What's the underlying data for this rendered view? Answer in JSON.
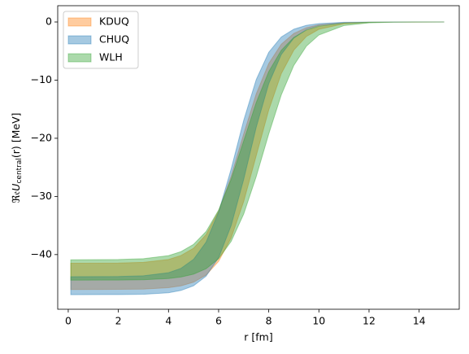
{
  "chart_data": {
    "type": "band",
    "x_label": "r [fm]",
    "y_label": {
      "prefix": "ℜ𝔢",
      "symbol": "U",
      "subscript": "central",
      "suffix": "(r) [MeV]"
    },
    "x": [
      0.1,
      2,
      3,
      4,
      4.5,
      5,
      5.5,
      6,
      6.5,
      7,
      7.5,
      8,
      8.5,
      9,
      9.5,
      10,
      11,
      12,
      13,
      15
    ],
    "series": [
      {
        "name": "KDUQ",
        "color": "#ff7f0e",
        "opacity": 0.4,
        "lower": [
          -46.0,
          -45.98,
          -45.93,
          -45.69,
          -45.38,
          -44.75,
          -43.52,
          -41.18,
          -37.13,
          -30.87,
          -23.0,
          -15.13,
          -8.88,
          -4.84,
          -2.5,
          -1.26,
          -0.31,
          -0.07,
          -0.02,
          0
        ],
        "upper": [
          -41.5,
          -41.46,
          -41.34,
          -40.85,
          -40.16,
          -38.91,
          -36.56,
          -32.52,
          -26.52,
          -19.26,
          -12.36,
          -7.14,
          -3.82,
          -1.97,
          -0.99,
          -0.49,
          -0.12,
          -0.03,
          -0.01,
          0
        ]
      },
      {
        "name": "CHUQ",
        "color": "#1f77b4",
        "opacity": 0.4,
        "lower": [
          -46.9,
          -46.88,
          -46.83,
          -46.56,
          -46.17,
          -45.36,
          -43.71,
          -40.54,
          -35.0,
          -27.06,
          -18.11,
          -10.6,
          -5.59,
          -2.78,
          -1.32,
          -0.62,
          -0.14,
          -0.03,
          -0.01,
          0
        ],
        "upper": [
          -43.8,
          -43.77,
          -43.65,
          -43.12,
          -42.36,
          -40.82,
          -37.86,
          -32.69,
          -25.27,
          -16.91,
          -9.9,
          -5.21,
          -2.58,
          -1.24,
          -0.58,
          -0.27,
          -0.06,
          -0.01,
          0,
          0
        ]
      },
      {
        "name": "WLH",
        "color": "#2ca02c",
        "opacity": 0.4,
        "lower": [
          -44.4,
          -44.38,
          -44.32,
          -44.12,
          -43.86,
          -43.36,
          -42.43,
          -40.71,
          -37.73,
          -33.03,
          -26.59,
          -19.25,
          -12.54,
          -7.46,
          -4.17,
          -2.24,
          -0.62,
          -0.16,
          -0.04,
          0
        ],
        "upper": [
          -40.9,
          -40.85,
          -40.7,
          -40.18,
          -39.49,
          -38.24,
          -36.04,
          -32.35,
          -27.04,
          -20.45,
          -13.86,
          -8.54,
          -4.87,
          -2.65,
          -1.41,
          -0.74,
          -0.2,
          -0.05,
          -0.01,
          0
        ]
      }
    ],
    "xlim": [
      -0.42,
      15.6
    ],
    "ylim": [
      -49.4,
      2.8
    ],
    "xticks": [
      0,
      2,
      4,
      6,
      8,
      10,
      12,
      14
    ],
    "yticks": [
      0,
      {
        "value": -10,
        "label": "−10"
      },
      {
        "value": -20,
        "label": "−20"
      },
      {
        "value": -30,
        "label": "−30"
      },
      {
        "value": -40,
        "label": "−40"
      }
    ],
    "legend": "upper left"
  }
}
